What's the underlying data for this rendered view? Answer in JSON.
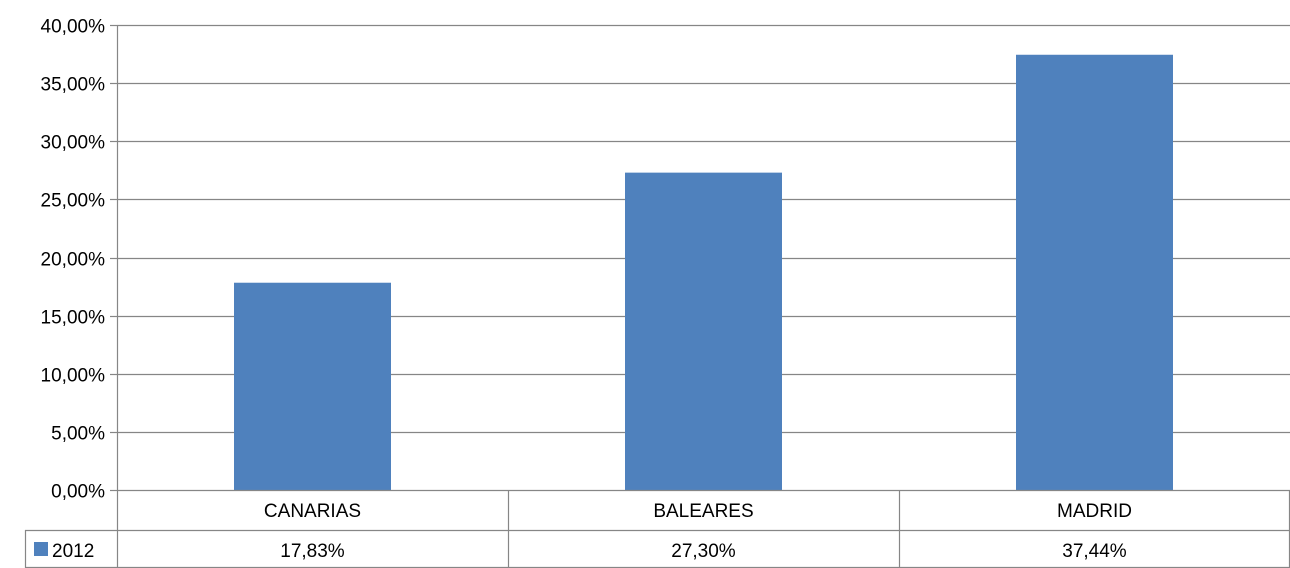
{
  "chart_data": {
    "type": "bar",
    "title": "",
    "xlabel": "",
    "ylabel": "",
    "categories": [
      "CANARIAS",
      "BALEARES",
      "MADRID"
    ],
    "series": [
      {
        "name": "2012",
        "values": [
          17.83,
          27.3,
          37.44
        ],
        "labels": [
          "17,83%",
          "27,30%",
          "37,44%"
        ],
        "color": "#4F81BD"
      }
    ],
    "ylim": [
      0,
      40
    ],
    "yticks": [
      0,
      5,
      10,
      15,
      20,
      25,
      30,
      35,
      40
    ],
    "ytick_labels": [
      "0,00%",
      "5,00%",
      "10,00%",
      "15,00%",
      "20,00%",
      "25,00%",
      "30,00%",
      "35,00%",
      "40,00%"
    ],
    "grid": true,
    "data_table": true,
    "legend": "data-table-left"
  },
  "colors": {
    "bar": "#4F81BD",
    "grid": "#868686",
    "axis": "#868686"
  }
}
